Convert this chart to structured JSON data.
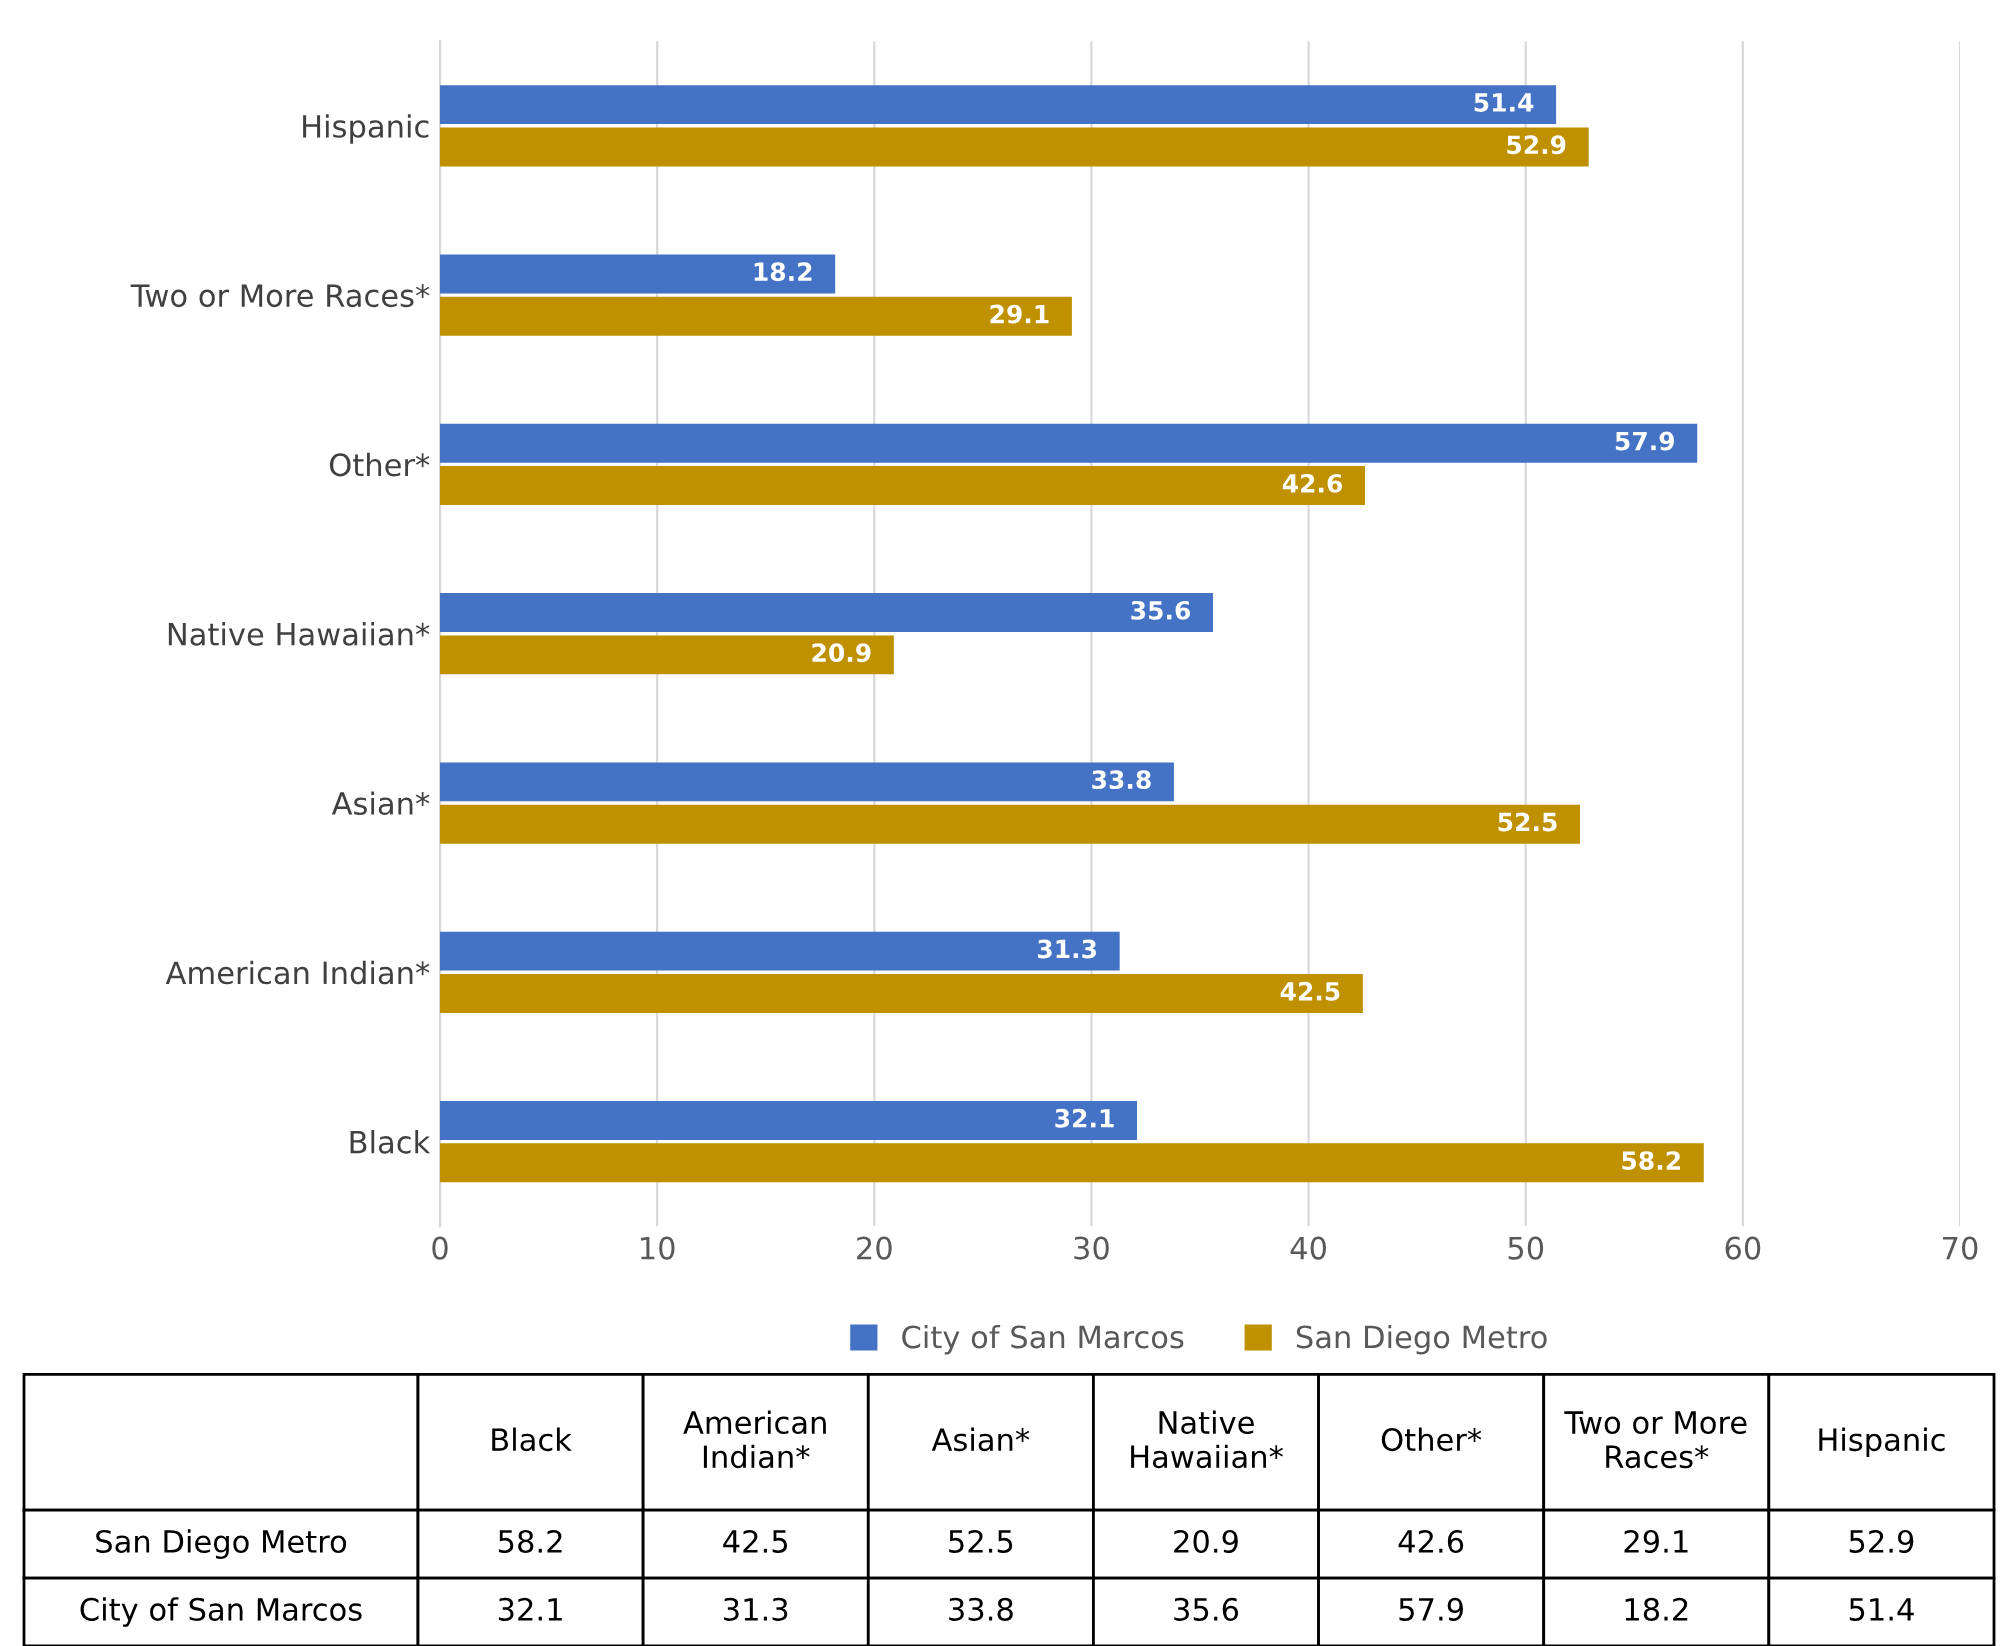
{
  "chart_data": [
    {
      "type": "bar",
      "orientation": "horizontal",
      "categories": [
        "Hispanic",
        "Two or More Races*",
        "Other*",
        "Native Hawaiian*",
        "Asian*",
        "American Indian*",
        "Black"
      ],
      "series": [
        {
          "name": "City of San Marcos",
          "color": "#4472c4",
          "values": [
            51.4,
            18.2,
            57.9,
            35.6,
            33.8,
            31.3,
            32.1
          ]
        },
        {
          "name": "San Diego Metro",
          "color": "#bf9000",
          "values": [
            52.9,
            29.1,
            42.6,
            20.9,
            52.5,
            42.5,
            58.2
          ]
        }
      ],
      "xlim": [
        0,
        70
      ],
      "xticks": [
        0,
        10,
        20,
        30,
        40,
        50,
        60,
        70
      ],
      "grid": "x",
      "legend": "bottom",
      "data_labels": true
    },
    {
      "type": "other",
      "categories": [
        "Black",
        "American Indian*",
        "Asian*",
        "Native Hawaiian*",
        "Other*",
        "Two or More Races*",
        "Hispanic"
      ],
      "series": [
        {
          "name": "San Diego Metro",
          "values": [
            58.2,
            42.5,
            52.5,
            20.9,
            42.6,
            29.1,
            52.9
          ]
        },
        {
          "name": "City of San Marcos",
          "values": [
            32.1,
            31.3,
            33.8,
            35.6,
            57.9,
            18.2,
            51.4
          ]
        }
      ],
      "data_labels": true
    }
  ]
}
